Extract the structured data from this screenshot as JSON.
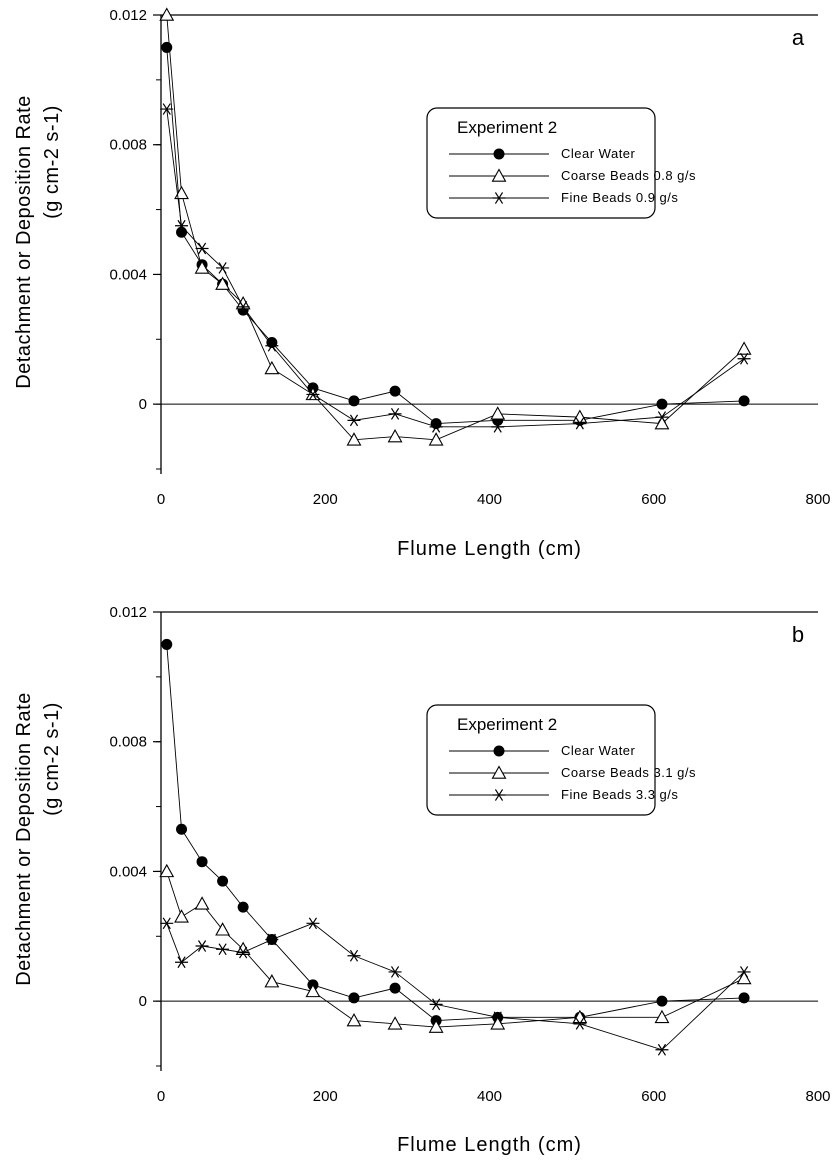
{
  "chart_data": [
    {
      "type": "line",
      "panel_label": "a",
      "xlabel": "Flume Length (cm)",
      "ylabel": "Detachment or Deposition Rate",
      "ylabel_unit": "(g cm-2 s-1)",
      "xlim": [
        0,
        800
      ],
      "ylim": [
        -0.002,
        0.012
      ],
      "xticks": [
        "0",
        "200",
        "400",
        "600",
        "800"
      ],
      "yticks": [
        "0",
        "0.004",
        "0.008",
        "0.012"
      ],
      "legend_title": "Experiment 2",
      "legend_position": "upper-right",
      "zero_line": true,
      "series": [
        {
          "name": "Clear Water",
          "marker": "filled-circle",
          "x": [
            7,
            25,
            50,
            75,
            100,
            135,
            185,
            235,
            285,
            335,
            410,
            510,
            610,
            710
          ],
          "y": [
            0.011,
            0.0053,
            0.0043,
            0.0037,
            0.0029,
            0.0019,
            0.0005,
            0.0001,
            0.0004,
            -0.0006,
            -0.0005,
            -0.0005,
            0.0,
            0.0001
          ]
        },
        {
          "name": "Coarse Beads 0.8 g/s",
          "marker": "open-triangle",
          "x": [
            7,
            25,
            50,
            75,
            100,
            135,
            185,
            235,
            285,
            335,
            410,
            510,
            610,
            710
          ],
          "y": [
            0.012,
            0.0065,
            0.0042,
            0.0037,
            0.0031,
            0.0011,
            0.0003,
            -0.0011,
            -0.001,
            -0.0011,
            -0.0003,
            -0.0004,
            -0.0006,
            0.0017
          ]
        },
        {
          "name": "Fine Beads 0.9 g/s",
          "marker": "asterisk",
          "x": [
            7,
            25,
            50,
            75,
            100,
            135,
            185,
            235,
            285,
            335,
            410,
            510,
            610,
            710
          ],
          "y": [
            0.0091,
            0.0055,
            0.0048,
            0.0042,
            0.003,
            0.0018,
            0.0003,
            -0.0005,
            -0.0003,
            -0.0007,
            -0.0007,
            -0.0006,
            -0.0004,
            0.0014
          ]
        }
      ]
    },
    {
      "type": "line",
      "panel_label": "b",
      "xlabel": "Flume Length (cm)",
      "ylabel": "Detachment or Deposition Rate",
      "ylabel_unit": "(g cm-2 s-1)",
      "xlim": [
        0,
        800
      ],
      "ylim": [
        -0.002,
        0.012
      ],
      "xticks": [
        "0",
        "200",
        "400",
        "600",
        "800"
      ],
      "yticks": [
        "0",
        "0.004",
        "0.008",
        "0.012"
      ],
      "legend_title": "Experiment 2",
      "legend_position": "upper-right",
      "zero_line": true,
      "series": [
        {
          "name": "Clear Water",
          "marker": "filled-circle",
          "x": [
            7,
            25,
            50,
            75,
            100,
            135,
            185,
            235,
            285,
            335,
            410,
            510,
            610,
            710
          ],
          "y": [
            0.011,
            0.0053,
            0.0043,
            0.0037,
            0.0029,
            0.0019,
            0.0005,
            0.0001,
            0.0004,
            -0.0006,
            -0.0005,
            -0.0005,
            0.0,
            0.0001
          ]
        },
        {
          "name": "Coarse Beads 3.1 g/s",
          "marker": "open-triangle",
          "x": [
            7,
            25,
            50,
            75,
            100,
            135,
            185,
            235,
            285,
            335,
            410,
            510,
            610,
            710
          ],
          "y": [
            0.004,
            0.0026,
            0.003,
            0.0022,
            0.0016,
            0.0006,
            0.0003,
            -0.0006,
            -0.0007,
            -0.0008,
            -0.0007,
            -0.0005,
            -0.0005,
            0.0007
          ]
        },
        {
          "name": "Fine Beads 3.3 g/s",
          "marker": "asterisk",
          "x": [
            7,
            25,
            50,
            75,
            100,
            135,
            185,
            235,
            285,
            335,
            410,
            510,
            610,
            710
          ],
          "y": [
            0.0024,
            0.0012,
            0.0017,
            0.0016,
            0.0015,
            0.0019,
            0.0024,
            0.0014,
            0.0009,
            -0.0001,
            -0.0005,
            -0.0007,
            -0.0015,
            0.0009
          ]
        }
      ]
    }
  ]
}
